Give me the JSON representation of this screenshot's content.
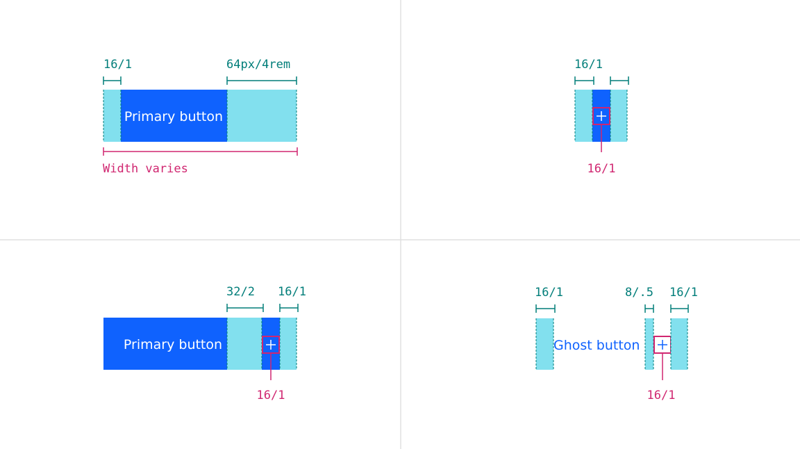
{
  "colors": {
    "padding_fill": "#82e0ee",
    "button_fill": "#0f62fe",
    "spec_teal": "#007d79",
    "spec_pink": "#d02670",
    "divider": "#e0e0e0",
    "ghost_text": "#0f62fe"
  },
  "icons": {
    "add": "plus-icon"
  },
  "panels": {
    "top_left": {
      "button_label": "Primary button",
      "left_padding_label": "16/1",
      "right_padding_label": "64px/4rem",
      "width_label": "Width varies"
    },
    "top_right": {
      "padding_label": "16/1",
      "icon_size_label": "16/1"
    },
    "bottom_left": {
      "button_label": "Primary button",
      "gap_label": "32/2",
      "right_padding_label": "16/1",
      "icon_size_label": "16/1"
    },
    "bottom_right": {
      "button_label": "Ghost button",
      "left_padding_label": "16/1",
      "gap_label": "8/.5",
      "right_padding_label": "16/1",
      "icon_size_label": "16/1"
    }
  }
}
